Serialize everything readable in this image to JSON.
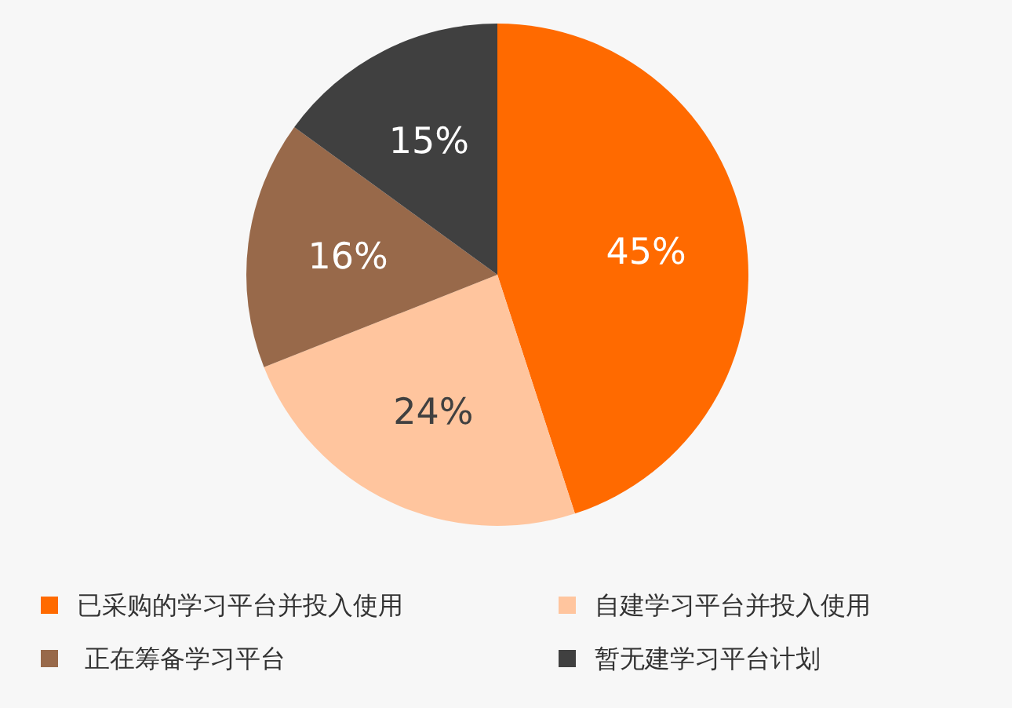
{
  "chart_data": {
    "type": "pie",
    "categories": [
      "已采购的学习平台并投入使用",
      "自建学习平台并投入使用",
      "正在筹备学习平台",
      "暂无建学习平台计划"
    ],
    "values": [
      45,
      24,
      16,
      15
    ],
    "colors": [
      "#ff6a00",
      "#ffc59e",
      "#98694a",
      "#404040"
    ],
    "value_labels": [
      "45%",
      "24%",
      "16%",
      "15%"
    ],
    "legend": "bottom"
  }
}
